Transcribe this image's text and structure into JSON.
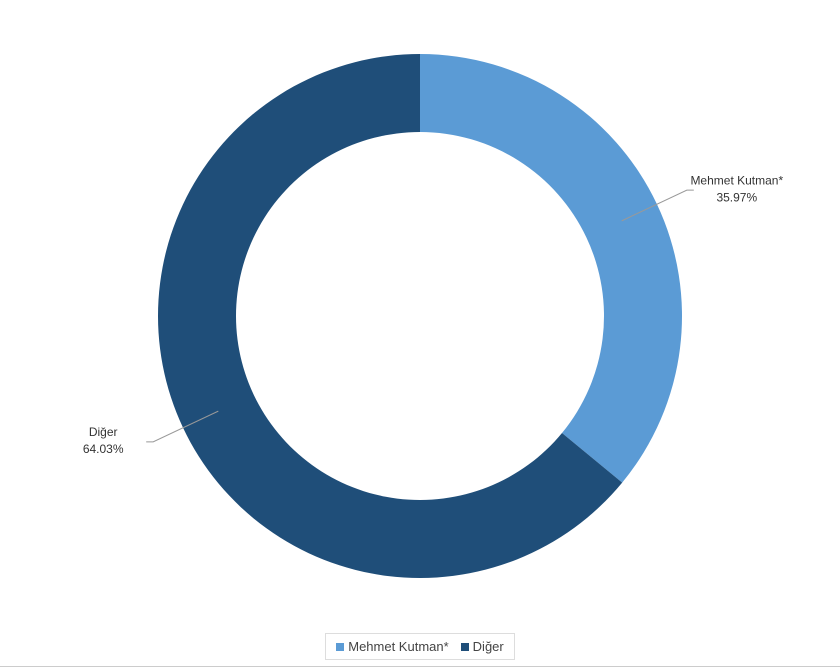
{
  "chart_data": {
    "type": "donut",
    "categories": [
      "Mehmet Kutman*",
      "Diğer"
    ],
    "values": [
      35.97,
      64.03
    ],
    "value_labels": [
      "35.97%",
      "64.03%"
    ],
    "colors": [
      "#5b9bd5",
      "#1f4e79"
    ],
    "legend": "bottom"
  }
}
